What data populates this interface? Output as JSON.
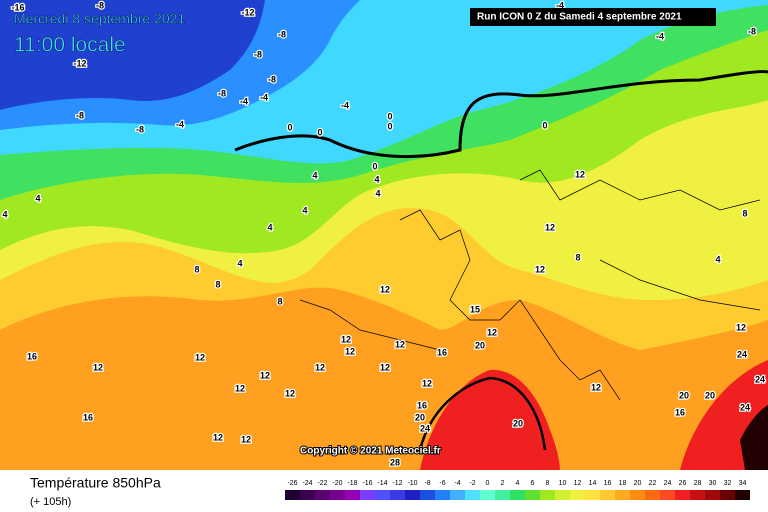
{
  "header": {
    "date": "Mercredi 8 septembre 2021",
    "time": "11:00 locale",
    "run": "Run ICON 0 Z du Samedi 4 septembre 2021"
  },
  "map": {
    "copyright": "Copyright © 2021 Meteociel.fr",
    "contour_labels": [
      -16,
      -8,
      -12,
      -8,
      -8,
      -8,
      -12,
      -8,
      -4,
      -4,
      -4,
      -8,
      -8,
      -4,
      0,
      0,
      0,
      0,
      0,
      0,
      4,
      4,
      4,
      4,
      4,
      4,
      4,
      4,
      12,
      12,
      8,
      4,
      8,
      8,
      8,
      8,
      12,
      12,
      15,
      12,
      20,
      16,
      12,
      12,
      12,
      16,
      12,
      12,
      12,
      12,
      12,
      16,
      20,
      24,
      20,
      20,
      20,
      24,
      24,
      16,
      16,
      12,
      12,
      12,
      12,
      12,
      12,
      12,
      24,
      -4,
      -4,
      -8,
      28
    ]
  },
  "footer": {
    "parameter": "Température 850hPa",
    "lead": "(+ 105h)",
    "legend": {
      "labels": [
        -26,
        -24,
        -22,
        -20,
        -18,
        -16,
        -14,
        -12,
        -10,
        -8,
        -6,
        -4,
        -2,
        0,
        2,
        4,
        6,
        8,
        10,
        12,
        14,
        16,
        18,
        20,
        22,
        24,
        26,
        28,
        30,
        32,
        34
      ],
      "colors": [
        "#1e0032",
        "#3c0050",
        "#5a0070",
        "#780090",
        "#9600b4",
        "#7a3cff",
        "#5050ff",
        "#3a3ae6",
        "#2020c0",
        "#1a50e0",
        "#2080ff",
        "#40b0ff",
        "#50e0ff",
        "#60ffd0",
        "#40f0a0",
        "#30e060",
        "#60e030",
        "#a0e820",
        "#d0f030",
        "#f0f040",
        "#ffe040",
        "#ffc830",
        "#ffaa20",
        "#ff8c10",
        "#ff6a10",
        "#ff4a20",
        "#f02020",
        "#c81010",
        "#a00808",
        "#6a0000",
        "#200000"
      ]
    }
  }
}
